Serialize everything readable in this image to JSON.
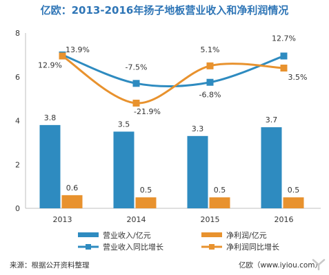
{
  "title": "亿欧：2013-2016年扬子地板营业收入和净利润情况",
  "source": "来源：根据公开资料整理",
  "site": "亿欧（www.iyiou.com）",
  "colors": {
    "revenue": "#2e8bc0",
    "profit": "#e8922e",
    "title": "#2e75b6",
    "axis": "#bfbfbf",
    "text": "#333333"
  },
  "chart_data": {
    "type": "bar",
    "categories": [
      "2013",
      "2014",
      "2015",
      "2016"
    ],
    "ylim": [
      0,
      8
    ],
    "yticks": [
      "0",
      "2",
      "4",
      "6",
      "8"
    ],
    "grid": false,
    "legend_position": "bottom",
    "series": [
      {
        "name": "营业收入/亿元",
        "kind": "bar",
        "values": [
          3.8,
          3.5,
          3.3,
          3.7
        ],
        "labels": [
          "3.8",
          "3.5",
          "3.3",
          "3.7"
        ]
      },
      {
        "name": "净利润/亿元",
        "kind": "bar",
        "values": [
          0.6,
          0.5,
          0.5,
          0.5
        ],
        "labels": [
          "0.6",
          "0.5",
          "0.5",
          "0.5"
        ]
      },
      {
        "name": "营业收入同比增长",
        "kind": "line",
        "values": [
          7.0,
          5.7,
          5.75,
          6.95
        ],
        "labels": [
          "13.9%",
          "-7.5%",
          "-6.8%",
          "12.7%"
        ]
      },
      {
        "name": "净利润同比增长",
        "kind": "line",
        "values": [
          6.95,
          4.8,
          6.5,
          6.4
        ],
        "labels": [
          "12.9%",
          "-21.9%",
          "5.1%",
          "3.5%"
        ]
      }
    ]
  }
}
